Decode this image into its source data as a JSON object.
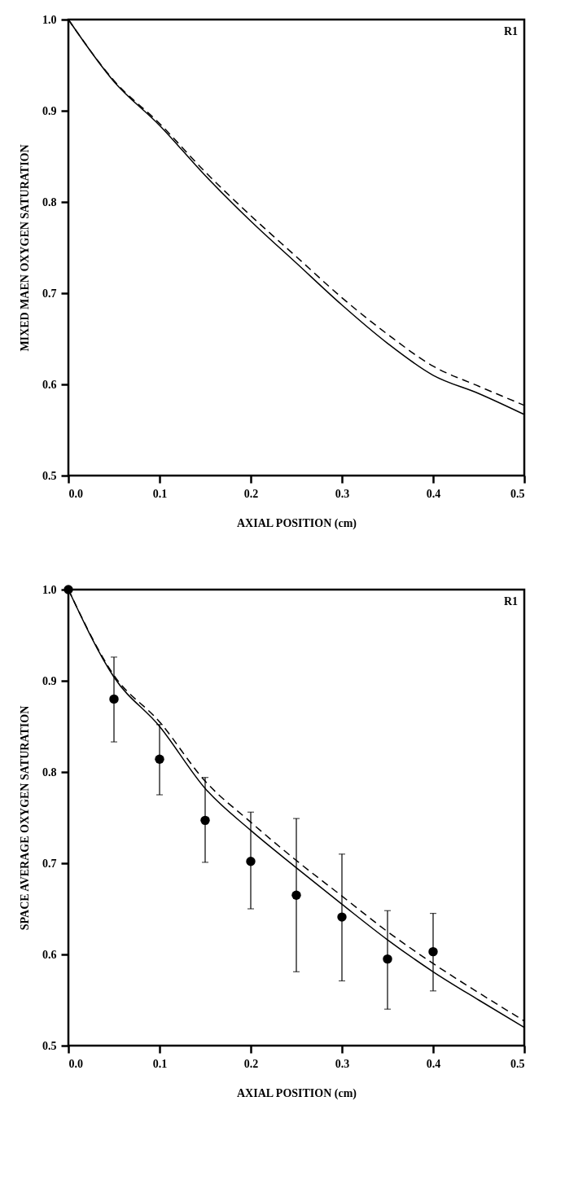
{
  "chart_data": [
    {
      "type": "line",
      "xlabel": "AXIAL POSITION (cm)",
      "ylabel": "MIXED MAEN OXYGEN SATURATION",
      "annotations": [
        "R1"
      ],
      "xlim": [
        0,
        0.5
      ],
      "xticks": [
        {
          "value": 0,
          "label": "0.0"
        },
        0.1,
        0.2,
        0.3,
        0.4,
        0.5
      ],
      "ylim": [
        0.5,
        1
      ],
      "yticks": [
        0.5,
        0.6,
        0.7,
        0.8,
        0.9,
        {
          "value": 1,
          "label": "1.0"
        }
      ],
      "grid": false,
      "series": [
        {
          "color": "#000000",
          "line_style": "solid",
          "x": [
            0,
            0.05,
            0.1,
            0.15,
            0.2,
            0.25,
            0.3,
            0.35,
            0.4,
            0.45,
            0.5
          ],
          "values": [
            1,
            0.932,
            0.884,
            0.829,
            0.779,
            0.733,
            0.687,
            0.645,
            0.61,
            0.59,
            0.567
          ]
        },
        {
          "color": "#000000",
          "line_style": "dashed",
          "x": [
            0,
            0.05,
            0.1,
            0.15,
            0.2,
            0.25,
            0.3,
            0.35,
            0.4,
            0.45,
            0.5
          ],
          "values": [
            1,
            0.933,
            0.886,
            0.833,
            0.785,
            0.74,
            0.695,
            0.655,
            0.62,
            0.598,
            0.577
          ]
        }
      ]
    },
    {
      "type": "line",
      "xlabel": "AXIAL POSITION (cm)",
      "ylabel": "SPACE AVERAGE OXYGEN SATURATION",
      "annotations": [
        "R1"
      ],
      "xlim": [
        0,
        0.5
      ],
      "xticks": [
        {
          "value": 0,
          "label": "0.0"
        },
        0.1,
        0.2,
        0.3,
        0.4,
        0.5
      ],
      "ylim": [
        0.5,
        1
      ],
      "yticks": [
        0.5,
        0.6,
        0.7,
        0.8,
        0.9,
        {
          "value": 1,
          "label": "1.0"
        }
      ],
      "grid": false,
      "series": [
        {
          "color": "#000000",
          "line_style": "solid",
          "x": [
            0,
            0.05,
            0.1,
            0.15,
            0.2,
            0.25,
            0.3,
            0.35,
            0.4,
            0.45,
            0.5
          ],
          "values": [
            1,
            0.904,
            0.85,
            0.782,
            0.736,
            0.695,
            0.655,
            0.616,
            0.581,
            0.55,
            0.52
          ]
        },
        {
          "color": "#000000",
          "line_style": "dashed",
          "x": [
            0,
            0.05,
            0.1,
            0.15,
            0.2,
            0.25,
            0.3,
            0.35,
            0.4,
            0.45,
            0.5
          ],
          "values": [
            1,
            0.906,
            0.855,
            0.79,
            0.745,
            0.703,
            0.664,
            0.625,
            0.59,
            0.558,
            0.527
          ]
        },
        {
          "type": "scatter",
          "color": "#000000",
          "marker": "circle",
          "x": [
            0,
            0.05,
            0.1,
            0.15,
            0.2,
            0.25,
            0.3,
            0.35,
            0.4
          ],
          "values": [
            1,
            0.88,
            0.814,
            0.747,
            0.702,
            0.665,
            0.641,
            0.595,
            0.603
          ],
          "errors": [
            null,
            [
              0.833,
              0.926
            ],
            [
              0.775,
              0.852
            ],
            [
              0.701,
              0.794
            ],
            [
              0.65,
              0.756
            ],
            [
              0.581,
              0.749
            ],
            [
              0.571,
              0.71
            ],
            [
              0.54,
              0.648
            ],
            [
              0.56,
              0.645
            ]
          ]
        }
      ]
    }
  ]
}
